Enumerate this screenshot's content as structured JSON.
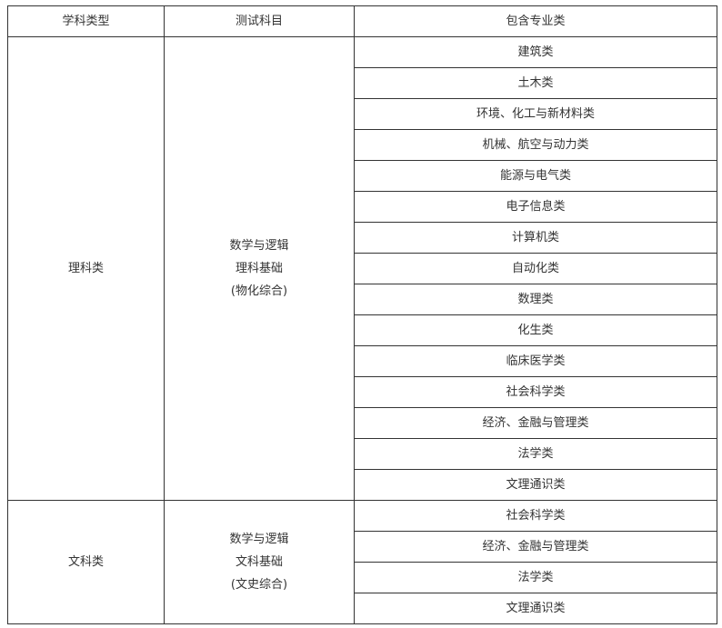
{
  "headers": [
    "学科类型",
    "测试科目",
    "包含专业类"
  ],
  "groups": [
    {
      "type": "理科类",
      "subjects": [
        "数学与逻辑",
        "理科基础",
        "(物化综合)"
      ],
      "majors": [
        "建筑类",
        "土木类",
        "环境、化工与新材料类",
        "机械、航空与动力类",
        "能源与电气类",
        "电子信息类",
        "计算机类",
        "自动化类",
        "数理类",
        "化生类",
        "临床医学类",
        "社会科学类",
        "经济、金融与管理类",
        "法学类",
        "文理通识类"
      ]
    },
    {
      "type": "文科类",
      "subjects": [
        "数学与逻辑",
        "文科基础",
        "(文史综合)"
      ],
      "majors": [
        "社会科学类",
        "经济、金融与管理类",
        "法学类",
        "文理通识类"
      ]
    }
  ]
}
